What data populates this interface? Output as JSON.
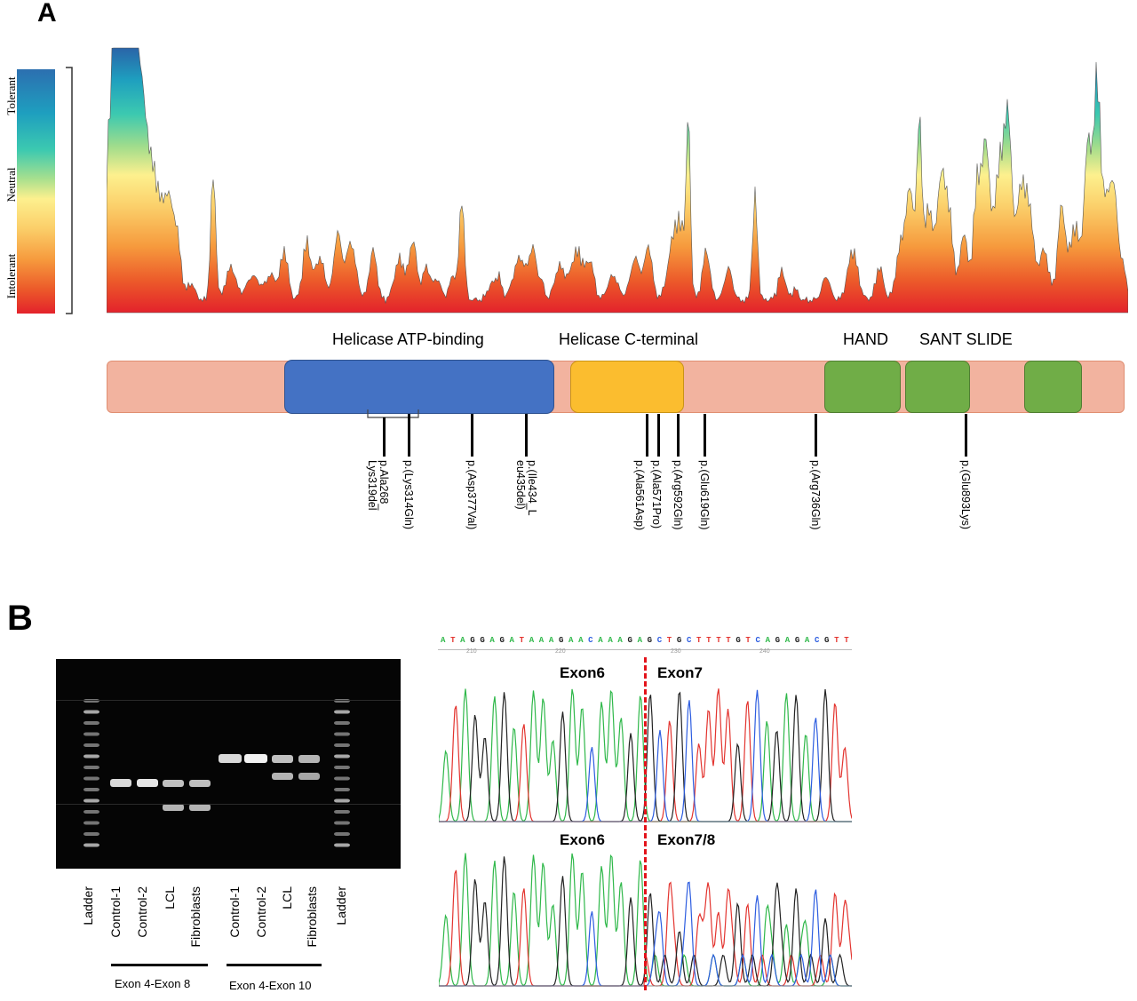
{
  "panel_a": {
    "letter": "A",
    "scale_labels": {
      "top": "Tolerant",
      "middle": "Neutral",
      "bottom": "Intolerant"
    },
    "domain_labels": [
      "Helicase ATP-binding",
      "Helicase C-terminal",
      "HAND",
      "SANT SLIDE"
    ],
    "mutations": [
      {
        "id": "m1",
        "line1": "p.Ala268_",
        "line2": "Lys319del"
      },
      {
        "id": "m2",
        "line1": "p.(Lys314Gln)",
        "line2": ""
      },
      {
        "id": "m3",
        "line1": "p.(Asp377Val)",
        "line2": ""
      },
      {
        "id": "m4",
        "line1": "p.(Ile434_L",
        "line2": "eu435del)"
      },
      {
        "id": "m5",
        "line1": "p.(Ala561Asp)",
        "line2": ""
      },
      {
        "id": "m6",
        "line1": "p.(Ala571Pro)",
        "line2": ""
      },
      {
        "id": "m7",
        "line1": "p.(Arg592Gln)",
        "line2": ""
      },
      {
        "id": "m8",
        "line1": "p.(Glu619Gln)",
        "line2": ""
      },
      {
        "id": "m9",
        "line1": "p.(Arg736Gln)",
        "line2": ""
      },
      {
        "id": "m10",
        "line1": "p.(Glu893Lys)",
        "line2": ""
      }
    ],
    "colors": {
      "backbone": "#f2b39f",
      "atp": "#4472c4",
      "cterm": "#fbbd2f",
      "hand_sant": "#70ad47"
    }
  },
  "panel_b": {
    "letter": "B",
    "lanes": [
      "Ladder",
      "Control-1",
      "Control-2",
      "LCL",
      "Fibroblasts",
      "Control-1",
      "Control-2",
      "LCL",
      "Fibroblasts",
      "Ladder"
    ],
    "groups": [
      "Exon 4-Exon 8",
      "Exon 4-Exon 10"
    ],
    "sequence": "ATAGGAGATAAAGAACAAAGAGCTGCTTTTGTCAGAGACGTT",
    "seq_ruler": [
      "210",
      "220",
      "230",
      "240"
    ],
    "trace_top": {
      "left": "Exon6",
      "right": "Exon7"
    },
    "trace_bottom": {
      "left": "Exon6",
      "right": "Exon7/8"
    }
  }
}
